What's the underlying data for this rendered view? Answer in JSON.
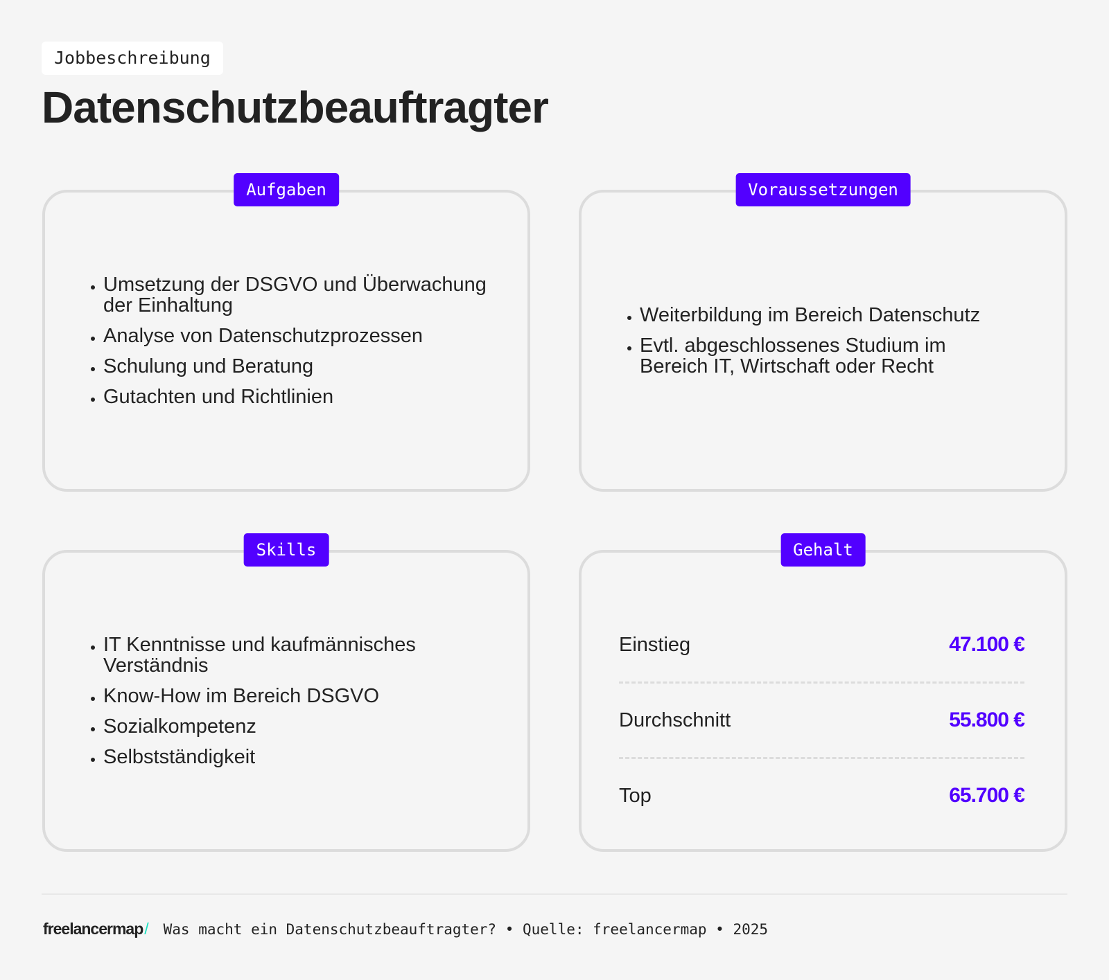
{
  "header": {
    "tag": "Jobbeschreibung",
    "title": "Datenschutzbeauftragter"
  },
  "cards": {
    "aufgaben": {
      "label": "Aufgaben",
      "items": [
        "Umsetzung der DSGVO und Überwachung der Einhaltung",
        "Analyse von Datenschutzprozessen",
        "Schulung und Beratung",
        "Gutachten und Richtlinien"
      ]
    },
    "voraussetzungen": {
      "label": "Voraussetzungen",
      "items": [
        "Weiterbildung im Bereich Datenschutz",
        "Evtl. abgeschlossenes Studium im Bereich IT, Wirtschaft oder Recht"
      ]
    },
    "skills": {
      "label": "Skills",
      "items": [
        "IT Kenntnisse und kaufmännisches Verständnis",
        "Know-How im Bereich DSGVO",
        "Sozialkompetenz",
        "Selbstständigkeit"
      ]
    },
    "gehalt": {
      "label": "Gehalt",
      "rows": [
        {
          "label": "Einstieg",
          "value": "47.100 €"
        },
        {
          "label": "Durchschnitt",
          "value": "55.800 €"
        },
        {
          "label": "Top",
          "value": "65.700 €"
        }
      ]
    }
  },
  "footer": {
    "logo": "freelancermap",
    "logo_slash": "/",
    "text": "Was macht ein Datenschutzbeauftragter? • Quelle: freelancermap • 2025"
  },
  "colors": {
    "accent": "#5200ff",
    "background": "#f5f5f5",
    "border": "#dcdcdc",
    "logo_slash": "#18e0c0"
  }
}
